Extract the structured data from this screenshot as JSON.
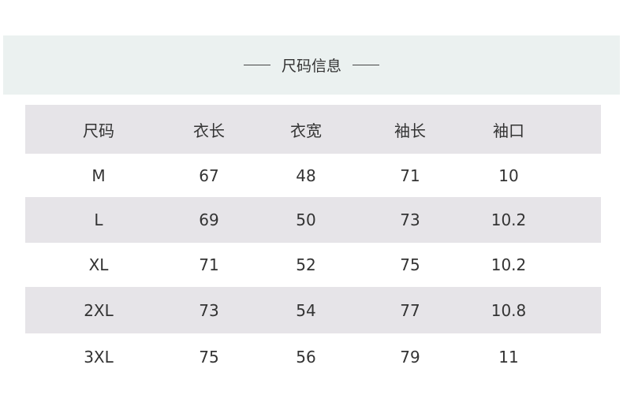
{
  "title": "尺码信息",
  "colors": {
    "band": "#ebf1f0",
    "stripe": "#e6e4e8"
  },
  "headers": [
    "尺码",
    "衣长",
    "衣宽",
    "袖长",
    "袖口"
  ],
  "rows": [
    [
      "M",
      "67",
      "48",
      "71",
      "10"
    ],
    [
      "L",
      "69",
      "50",
      "73",
      "10.2"
    ],
    [
      "XL",
      "71",
      "52",
      "75",
      "10.2"
    ],
    [
      "2XL",
      "73",
      "54",
      "77",
      "10.8"
    ],
    [
      "3XL",
      "75",
      "56",
      "79",
      "11"
    ]
  ]
}
